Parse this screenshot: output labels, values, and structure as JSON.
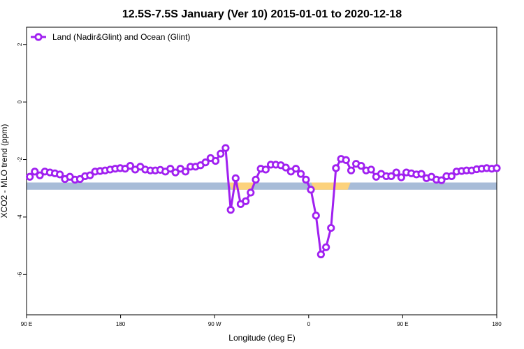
{
  "chart_data": {
    "type": "line",
    "title": "12.5S-7.5S January (Ver 10)   2015-01-01 to 2020-12-18",
    "xlabel": "Longitude (deg E)",
    "ylabel": "XCO2 - MLO trend (ppm)",
    "xlim": [
      90,
      450
    ],
    "ylim": [
      -7.4,
      2.6
    ],
    "xticks": [
      {
        "value": 90,
        "label": "90 E"
      },
      {
        "value": 162,
        "label": "180"
      },
      {
        "value": 234,
        "label": "90 W"
      },
      {
        "value": 306,
        "label": "0"
      },
      {
        "value": 378,
        "label": "90 E"
      },
      {
        "value": 450,
        "label": "180"
      }
    ],
    "yticks": [
      {
        "value": 2,
        "label": "2"
      },
      {
        "value": 0,
        "label": "0"
      },
      {
        "value": -2,
        "label": "-2"
      },
      {
        "value": -4,
        "label": "-4"
      },
      {
        "value": -6,
        "label": "-6"
      }
    ],
    "grid": false,
    "legend": {
      "position": "top-left"
    },
    "series": [
      {
        "name": "Land (Nadir&Glint) and Ocean (Glint)",
        "color": "#a020f0",
        "marker": "open-circle",
        "x": [
          92.5,
          96.3,
          100.2,
          104.0,
          107.9,
          111.7,
          115.5,
          119.4,
          123.2,
          127.1,
          130.9,
          134.8,
          138.6,
          142.5,
          146.3,
          150.2,
          154.0,
          157.9,
          161.7,
          165.5,
          169.4,
          173.2,
          177.1,
          180.9,
          184.8,
          188.6,
          192.4,
          196.3,
          200.1,
          204.0,
          207.8,
          211.7,
          215.5,
          219.4,
          223.2,
          227.0,
          230.9,
          234.7,
          238.6,
          242.4,
          246.3,
          250.1,
          253.9,
          257.8,
          261.6,
          265.5,
          269.3,
          273.1,
          277.0,
          280.8,
          284.7,
          288.5,
          292.4,
          296.2,
          300.0,
          303.9,
          307.7,
          311.6,
          315.4,
          319.3,
          323.1,
          326.9,
          330.8,
          334.6,
          338.5,
          342.3,
          346.2,
          350.0,
          353.8,
          357.7,
          361.5,
          365.4,
          369.2,
          373.1,
          376.9,
          380.8,
          384.6,
          388.5,
          392.3,
          396.2,
          400.0,
          403.8,
          407.7,
          411.5,
          415.4,
          419.2,
          423.1,
          426.9,
          430.8,
          434.6,
          438.5,
          442.3,
          446.2,
          450.0
        ],
        "y": [
          -2.6,
          -2.42,
          -2.55,
          -2.42,
          -2.45,
          -2.48,
          -2.52,
          -2.68,
          -2.6,
          -2.7,
          -2.68,
          -2.58,
          -2.55,
          -2.42,
          -2.4,
          -2.38,
          -2.35,
          -2.32,
          -2.3,
          -2.32,
          -2.22,
          -2.35,
          -2.25,
          -2.35,
          -2.38,
          -2.38,
          -2.36,
          -2.42,
          -2.32,
          -2.45,
          -2.32,
          -2.42,
          -2.25,
          -2.25,
          -2.2,
          -2.1,
          -1.95,
          -2.05,
          -1.8,
          -1.6,
          -3.75,
          -2.65,
          -3.55,
          -3.45,
          -3.15,
          -2.7,
          -2.32,
          -2.35,
          -2.18,
          -2.18,
          -2.2,
          -2.28,
          -2.42,
          -2.32,
          -2.5,
          -2.7,
          -3.05,
          -3.95,
          -5.3,
          -5.05,
          -4.38,
          -2.3,
          -1.98,
          -2.02,
          -2.38,
          -2.15,
          -2.22,
          -2.38,
          -2.35,
          -2.6,
          -2.5,
          -2.58,
          -2.58,
          -2.45,
          -2.62,
          -2.45,
          -2.48,
          -2.52,
          -2.5,
          -2.65,
          -2.6,
          -2.7,
          -2.72,
          -2.58,
          -2.58,
          -2.42,
          -2.4,
          -2.38,
          -2.38,
          -2.34,
          -2.32,
          -2.3,
          -2.32,
          -2.3
        ]
      }
    ],
    "land_ocean_bar": {
      "y_range": [
        -3.05,
        -2.8
      ],
      "ocean_color": "#a8bcd8",
      "land_color": "#fcd27c",
      "land_spans": [
        [
          245,
          265
        ],
        [
          308,
          338
        ]
      ]
    }
  }
}
